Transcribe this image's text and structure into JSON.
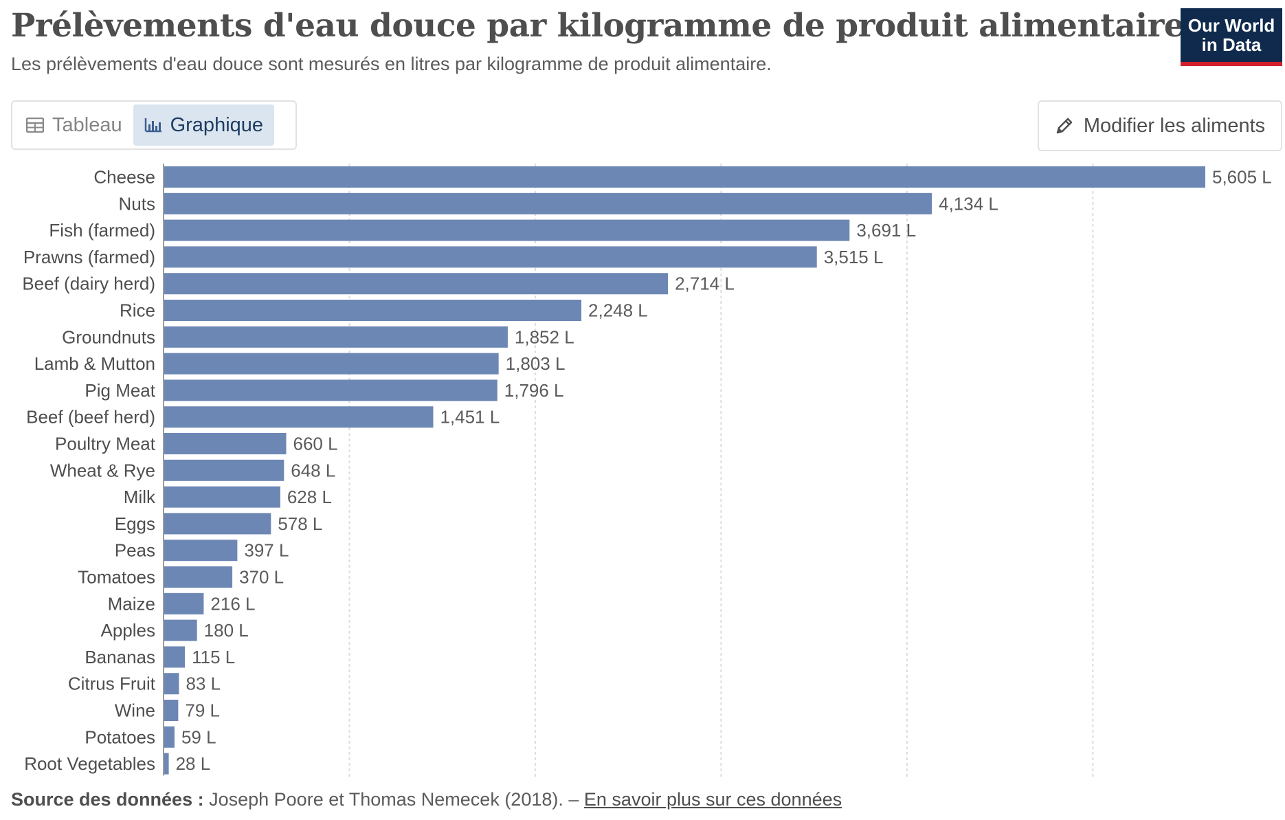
{
  "header": {
    "title": "Prélèvements d'eau douce par kilogramme de produit alimentaire",
    "subtitle": "Les prélèvements d'eau douce sont mesurés en litres par kilogramme de produit alimentaire."
  },
  "logo": {
    "line1": "Our World",
    "line2": "in Data"
  },
  "tabs": [
    {
      "label": "Tableau",
      "icon": "table-icon",
      "active": false
    },
    {
      "label": "Graphique",
      "icon": "bar-chart-icon",
      "active": true
    }
  ],
  "edit_button": {
    "label": "Modifier les aliments",
    "icon": "pencil-icon"
  },
  "footer": {
    "source_label": "Source des données :",
    "source_text": "Joseph Poore et Thomas Nemecek (2018). –",
    "link_text": "En savoir plus sur ces données"
  },
  "colors": {
    "bar": "#6d87b5",
    "gridline": "#dcdcdc",
    "label": "#4e4e4e"
  },
  "chart_data": {
    "type": "bar",
    "orientation": "horizontal",
    "categories": [
      "Cheese",
      "Nuts",
      "Fish (farmed)",
      "Prawns (farmed)",
      "Beef (dairy herd)",
      "Rice",
      "Groundnuts",
      "Lamb & Mutton",
      "Pig Meat",
      "Beef (beef herd)",
      "Poultry Meat",
      "Wheat & Rye",
      "Milk",
      "Eggs",
      "Peas",
      "Tomatoes",
      "Maize",
      "Apples",
      "Bananas",
      "Citrus Fruit",
      "Wine",
      "Potatoes",
      "Root Vegetables"
    ],
    "values": [
      5605,
      4134,
      3691,
      3515,
      2714,
      2248,
      1852,
      1803,
      1796,
      1451,
      660,
      648,
      628,
      578,
      397,
      370,
      216,
      180,
      115,
      83,
      79,
      59,
      28
    ],
    "value_labels": [
      "5,605 L",
      "4,134 L",
      "3,691 L",
      "3,515 L",
      "2,714 L",
      "2,248 L",
      "1,852 L",
      "1,803 L",
      "1,796 L",
      "1,451 L",
      "660 L",
      "648 L",
      "628 L",
      "578 L",
      "397 L",
      "370 L",
      "216 L",
      "180 L",
      "115 L",
      "83 L",
      "79 L",
      "59 L",
      "28 L"
    ],
    "unit": "L",
    "xlim": [
      0,
      5605
    ],
    "grid_values": [
      1000,
      2000,
      3000,
      4000,
      5000
    ],
    "grid": true
  }
}
